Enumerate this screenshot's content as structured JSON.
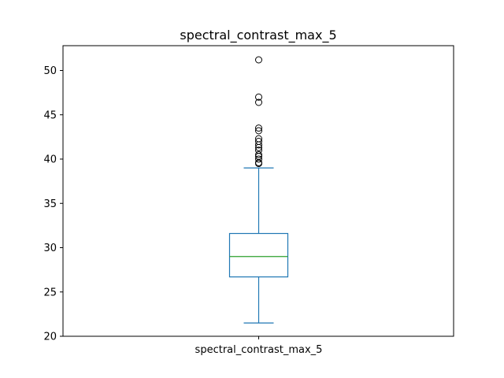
{
  "chart_data": {
    "type": "box",
    "title": "spectral_contrast_max_5",
    "xlabel": "",
    "ylabel": "",
    "categories": [
      "spectral_contrast_max_5"
    ],
    "ylim": [
      20,
      52.8
    ],
    "yticks": [
      20,
      25,
      30,
      35,
      40,
      45,
      50
    ],
    "grid": false,
    "legend": "none",
    "box": {
      "whisker_low": 21.5,
      "q1": 26.7,
      "median": 29.0,
      "q3": 31.6,
      "whisker_high": 39.0
    },
    "outliers": [
      39.5,
      39.6,
      40.0,
      40.3,
      40.5,
      41.0,
      41.3,
      41.6,
      42.0,
      42.3,
      43.2,
      43.5,
      46.4,
      47.0,
      51.2
    ],
    "colors": {
      "box": "#1f77b4",
      "median": "#2ca02c",
      "outlier": "#000000",
      "axes": "#000000"
    }
  }
}
